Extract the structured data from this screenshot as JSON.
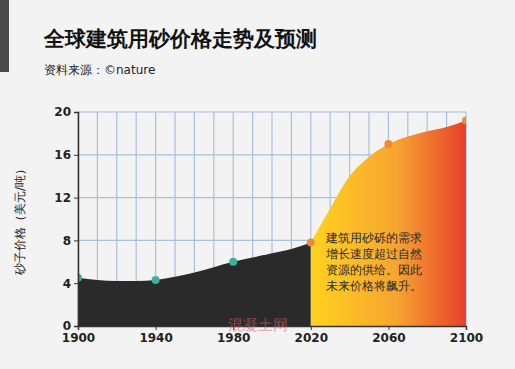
{
  "chart_data": {
    "type": "area",
    "title": "全球建筑用砂价格走势及预测",
    "subtitle": "资料来源：©nature",
    "y_label": "砂子价格（美元/吨）",
    "annotation": [
      "建筑用砂砾的需求",
      "增长速度超过自然",
      "资源的供给。因此",
      "未来价格将飙升。"
    ],
    "watermark": "混凝土网",
    "x": [
      1900,
      1910,
      1920,
      1930,
      1940,
      1950,
      1960,
      1970,
      1980,
      1990,
      2000,
      2010,
      2020,
      2030,
      2040,
      2050,
      2060,
      2070,
      2080,
      2090,
      2100
    ],
    "series": [
      {
        "type": "area",
        "color": "#2a2a2a",
        "values": [
          4.5,
          4.3,
          4.2,
          4.2,
          4.3,
          4.6,
          5.0,
          5.5,
          6.0,
          6.4,
          6.8,
          7.2,
          7.8,
          null,
          null,
          null,
          null,
          null,
          null,
          null,
          null
        ]
      },
      {
        "type": "area",
        "color": "#e8402b",
        "values": [
          null,
          null,
          null,
          null,
          null,
          null,
          null,
          null,
          null,
          null,
          null,
          null,
          7.8,
          11.0,
          14.0,
          15.8,
          17.0,
          17.7,
          18.2,
          18.6,
          19.2
        ]
      },
      {
        "type": "scatter",
        "marker": "circle",
        "color": "#3fb0a0",
        "values": [
          4.5,
          null,
          null,
          null,
          4.3,
          null,
          null,
          null,
          6.0,
          null,
          null,
          null,
          null,
          null,
          null,
          null,
          null,
          null,
          null,
          null,
          null
        ]
      },
      {
        "type": "scatter",
        "marker": "circle",
        "color": "#f0883a",
        "values": [
          null,
          null,
          null,
          null,
          null,
          null,
          null,
          null,
          null,
          null,
          null,
          null,
          7.8,
          null,
          null,
          null,
          17.0,
          null,
          null,
          null,
          19.2
        ]
      }
    ],
    "xlim": [
      1900,
      2100
    ],
    "xticks": [
      1900,
      1940,
      1980,
      2020,
      2060,
      2100
    ],
    "ylim": [
      0,
      20
    ],
    "yticks": [
      0,
      4,
      8,
      12,
      16,
      20
    ],
    "grid": true
  }
}
